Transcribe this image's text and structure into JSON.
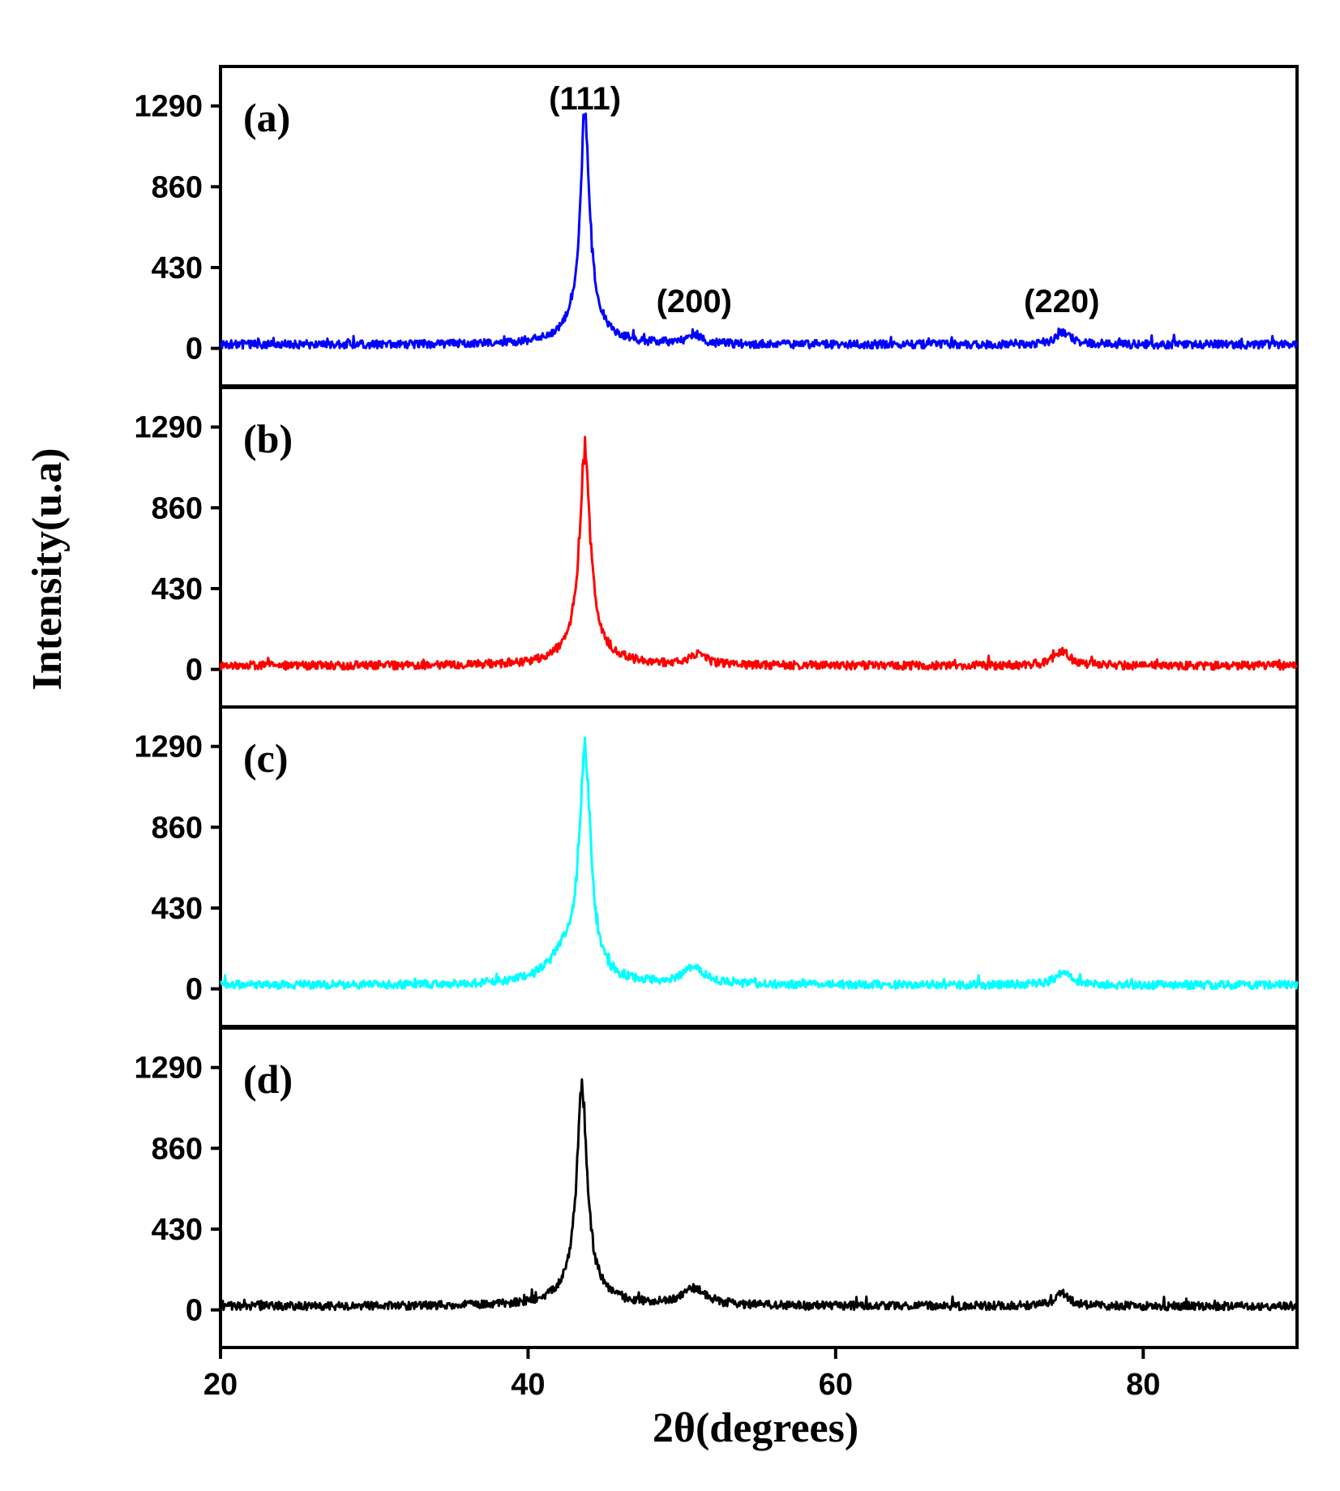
{
  "chart_data": {
    "type": "line",
    "title": "",
    "xlabel": "2θ(degrees)",
    "ylabel": "Intensity(u.a)",
    "xlim": [
      20,
      90
    ],
    "ylim": [
      -200,
      1500
    ],
    "x_ticks": [
      20,
      40,
      60,
      80
    ],
    "x_tick_labels": [
      "20",
      "40",
      "60",
      "80"
    ],
    "y_ticks": [
      0,
      430,
      860,
      1290
    ],
    "y_tick_labels": [
      "0",
      "430",
      "860",
      "1290"
    ],
    "grid": false,
    "colors": {
      "a": "#0000ff",
      "b": "#ff0000",
      "c": "#00ffff",
      "d": "#000000"
    },
    "peak_annotations": [
      {
        "label": "(111)",
        "x": 43.7
      },
      {
        "label": "(200)",
        "x": 50.8
      },
      {
        "label": "(220)",
        "x": 74.7
      }
    ],
    "panels": [
      {
        "label": "(a)",
        "color": "#0000ff",
        "baseline": 20,
        "noise": 22,
        "peaks": [
          {
            "center": 43.7,
            "height": 1120,
            "width": 0.35
          },
          {
            "center": 43.7,
            "height": 130,
            "width": 1.3
          },
          {
            "center": 50.8,
            "height": 50,
            "width": 0.5
          },
          {
            "center": 74.8,
            "height": 60,
            "width": 0.6
          }
        ]
      },
      {
        "label": "(b)",
        "color": "#ff0000",
        "baseline": 20,
        "noise": 22,
        "peaks": [
          {
            "center": 43.7,
            "height": 1040,
            "width": 0.4
          },
          {
            "center": 43.7,
            "height": 120,
            "width": 1.4
          },
          {
            "center": 51.0,
            "height": 60,
            "width": 0.6
          },
          {
            "center": 74.7,
            "height": 75,
            "width": 0.6
          }
        ]
      },
      {
        "label": "(c)",
        "color": "#00ffff",
        "baseline": 20,
        "noise": 22,
        "peaks": [
          {
            "center": 43.7,
            "height": 1170,
            "width": 0.45
          },
          {
            "center": 42.5,
            "height": 150,
            "width": 1.4
          },
          {
            "center": 50.8,
            "height": 85,
            "width": 0.9
          },
          {
            "center": 74.8,
            "height": 65,
            "width": 0.6
          }
        ]
      },
      {
        "label": "(d)",
        "color": "#000000",
        "baseline": 20,
        "noise": 22,
        "peaks": [
          {
            "center": 43.5,
            "height": 1030,
            "width": 0.4
          },
          {
            "center": 43.5,
            "height": 120,
            "width": 1.4
          },
          {
            "center": 50.8,
            "height": 85,
            "width": 1.0
          },
          {
            "center": 74.7,
            "height": 65,
            "width": 0.6
          }
        ]
      }
    ]
  }
}
